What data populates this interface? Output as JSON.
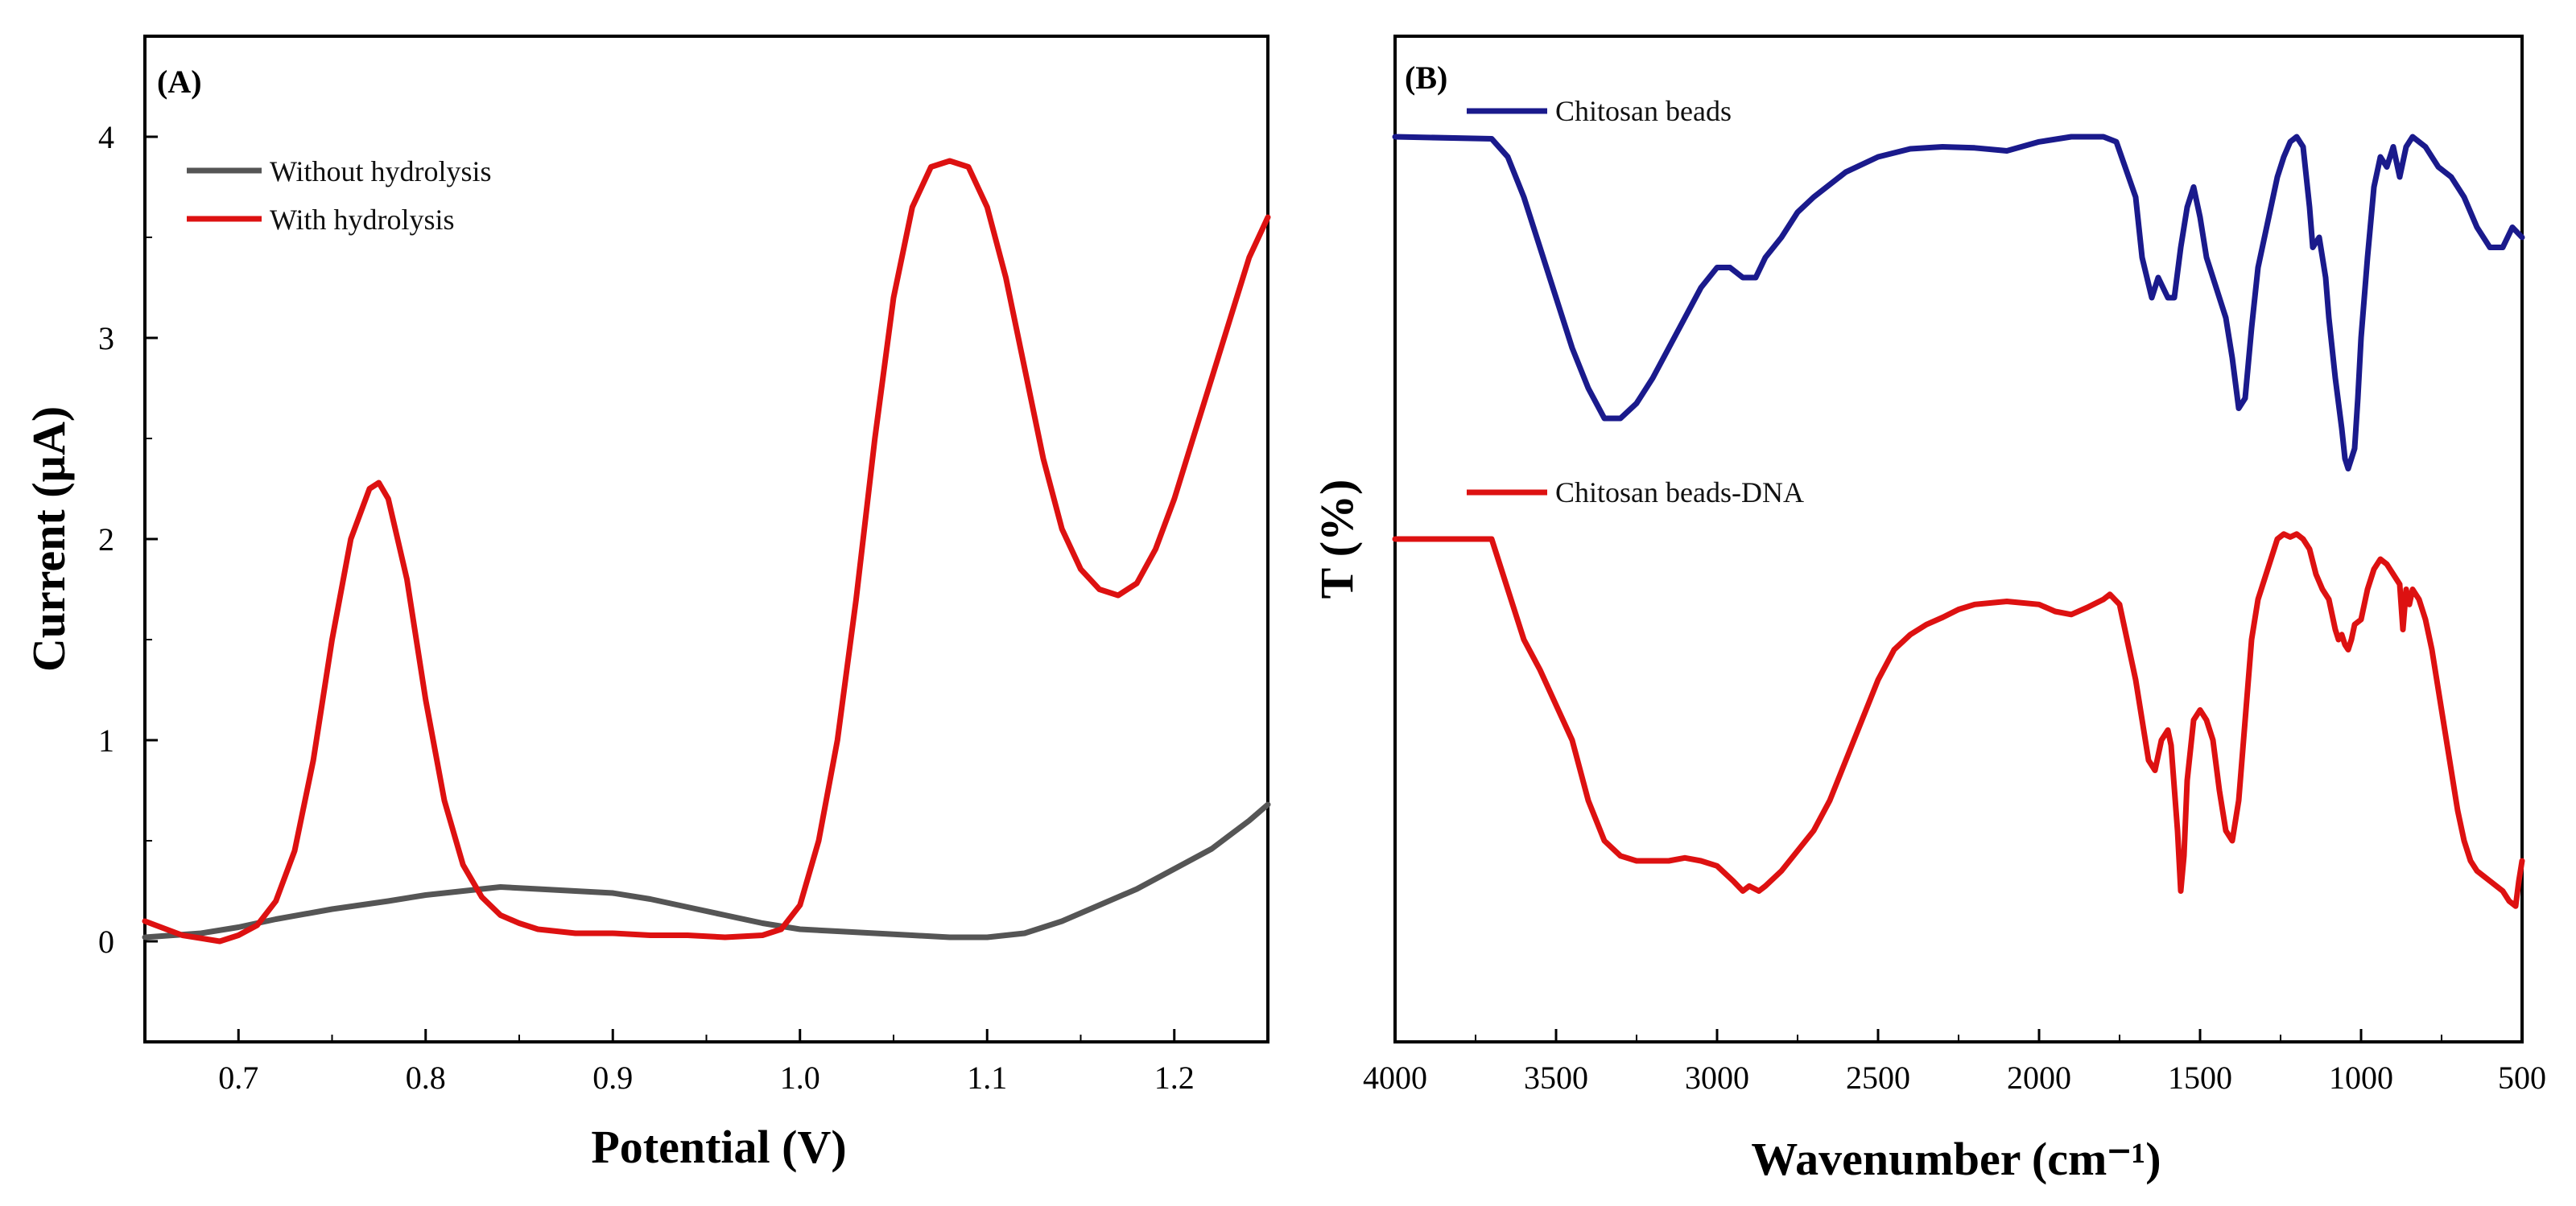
{
  "chart_data": [
    {
      "type": "line",
      "panel_label": "(A)",
      "xlabel": "Potential (V)",
      "ylabel": "Current (µA)",
      "xlim": [
        0.65,
        1.25
      ],
      "ylim": [
        -0.5,
        4.5
      ],
      "xticks": [
        0.7,
        0.8,
        0.9,
        1.0,
        1.1,
        1.2
      ],
      "xtick_labels": [
        "0.7",
        "0.8",
        "0.9",
        "1.0",
        "1.1",
        "1.2"
      ],
      "yticks": [
        0,
        1,
        2,
        3,
        4
      ],
      "ytick_labels": [
        "0",
        "1",
        "2",
        "3",
        "4"
      ],
      "legend_position": "top-left",
      "series": [
        {
          "name": "Without hydrolysis",
          "color": "#555555",
          "x": [
            0.65,
            0.68,
            0.7,
            0.72,
            0.75,
            0.78,
            0.8,
            0.82,
            0.84,
            0.86,
            0.88,
            0.9,
            0.92,
            0.94,
            0.96,
            0.98,
            1.0,
            1.02,
            1.04,
            1.06,
            1.08,
            1.1,
            1.12,
            1.14,
            1.16,
            1.18,
            1.2,
            1.22,
            1.24,
            1.25
          ],
          "y": [
            0.02,
            0.04,
            0.07,
            0.11,
            0.16,
            0.2,
            0.23,
            0.25,
            0.27,
            0.26,
            0.25,
            0.24,
            0.21,
            0.17,
            0.13,
            0.09,
            0.06,
            0.05,
            0.04,
            0.03,
            0.02,
            0.02,
            0.04,
            0.1,
            0.18,
            0.26,
            0.36,
            0.46,
            0.6,
            0.68
          ]
        },
        {
          "name": "With hydrolysis",
          "color": "#dd1111",
          "x": [
            0.65,
            0.67,
            0.69,
            0.7,
            0.71,
            0.72,
            0.73,
            0.74,
            0.75,
            0.76,
            0.77,
            0.775,
            0.78,
            0.79,
            0.8,
            0.81,
            0.82,
            0.83,
            0.84,
            0.85,
            0.86,
            0.88,
            0.9,
            0.92,
            0.94,
            0.96,
            0.98,
            0.99,
            1.0,
            1.01,
            1.02,
            1.03,
            1.04,
            1.05,
            1.06,
            1.07,
            1.08,
            1.09,
            1.1,
            1.11,
            1.12,
            1.13,
            1.14,
            1.15,
            1.16,
            1.17,
            1.18,
            1.19,
            1.2,
            1.21,
            1.22,
            1.23,
            1.24,
            1.25
          ],
          "y": [
            0.1,
            0.03,
            0.0,
            0.03,
            0.08,
            0.2,
            0.45,
            0.9,
            1.5,
            2.0,
            2.25,
            2.28,
            2.2,
            1.8,
            1.2,
            0.7,
            0.38,
            0.22,
            0.13,
            0.09,
            0.06,
            0.04,
            0.04,
            0.03,
            0.03,
            0.02,
            0.03,
            0.06,
            0.18,
            0.5,
            1.0,
            1.7,
            2.5,
            3.2,
            3.65,
            3.85,
            3.88,
            3.85,
            3.65,
            3.3,
            2.85,
            2.4,
            2.05,
            1.85,
            1.75,
            1.72,
            1.78,
            1.95,
            2.2,
            2.5,
            2.8,
            3.1,
            3.4,
            3.6
          ]
        }
      ]
    },
    {
      "type": "line",
      "panel_label": "(B)",
      "xlabel": "Wavenumber (cm⁻¹)",
      "ylabel": "T (%)",
      "xlim": [
        4000,
        500
      ],
      "ylim": [
        0,
        100
      ],
      "xticks": [
        4000,
        3500,
        3000,
        2500,
        2000,
        1500,
        1000,
        500
      ],
      "xtick_labels": [
        "4000",
        "3500",
        "3000",
        "2500",
        "2000",
        "1500",
        "1000",
        "500"
      ],
      "legend_position": "top-left",
      "series": [
        {
          "name": "Chitosan beads",
          "color": "#1a1a8c",
          "x": [
            4000,
            3700,
            3650,
            3600,
            3550,
            3500,
            3450,
            3400,
            3350,
            3300,
            3250,
            3200,
            3150,
            3100,
            3050,
            3000,
            2960,
            2920,
            2880,
            2850,
            2800,
            2750,
            2700,
            2600,
            2500,
            2400,
            2300,
            2200,
            2100,
            2000,
            1900,
            1800,
            1760,
            1700,
            1680,
            1650,
            1630,
            1600,
            1580,
            1560,
            1540,
            1520,
            1500,
            1480,
            1450,
            1420,
            1400,
            1380,
            1360,
            1340,
            1320,
            1300,
            1280,
            1260,
            1240,
            1220,
            1200,
            1180,
            1160,
            1150,
            1130,
            1110,
            1100,
            1080,
            1060,
            1050,
            1040,
            1030,
            1020,
            1010,
            1000,
            980,
            960,
            940,
            920,
            900,
            880,
            860,
            840,
            820,
            800,
            760,
            720,
            680,
            640,
            600,
            560,
            530,
            500
          ],
          "y": [
            90.0,
            89.8,
            88.0,
            84.0,
            79.0,
            74.0,
            69.0,
            65.0,
            62.0,
            62.0,
            63.5,
            66.0,
            69.0,
            72.0,
            75.0,
            77.0,
            77.0,
            76.0,
            76.0,
            78.0,
            80.0,
            82.5,
            84.0,
            86.5,
            88.0,
            88.8,
            89.0,
            88.9,
            88.6,
            89.5,
            90.0,
            90.0,
            89.5,
            84.0,
            78.0,
            74.0,
            76.0,
            74.0,
            74.0,
            79.0,
            83.0,
            85.0,
            82.0,
            78.0,
            75.0,
            72.0,
            68.0,
            63.0,
            64.0,
            71.0,
            77.0,
            80.0,
            83.0,
            86.0,
            88.0,
            89.5,
            90.0,
            89.0,
            83.0,
            79.0,
            80.0,
            76.0,
            72.0,
            66.0,
            61.0,
            58.0,
            57.0,
            58.0,
            59.0,
            64.0,
            70.0,
            78.0,
            85.0,
            88.0,
            87.0,
            89.0,
            86.0,
            89.0,
            90.0,
            89.5,
            89.0,
            87.0,
            86.0,
            84.0,
            81.0,
            79.0,
            79.0,
            81.0,
            80.0
          ]
        },
        {
          "name": "Chitosan beads-DNA",
          "color": "#dd1111",
          "x": [
            4000,
            3700,
            3650,
            3600,
            3550,
            3500,
            3450,
            3400,
            3350,
            3300,
            3250,
            3200,
            3150,
            3100,
            3050,
            3000,
            2950,
            2920,
            2900,
            2870,
            2850,
            2800,
            2750,
            2700,
            2650,
            2600,
            2550,
            2500,
            2450,
            2400,
            2350,
            2300,
            2250,
            2200,
            2100,
            2000,
            1950,
            1900,
            1850,
            1800,
            1780,
            1750,
            1700,
            1680,
            1660,
            1640,
            1620,
            1600,
            1590,
            1570,
            1560,
            1550,
            1540,
            1520,
            1500,
            1480,
            1460,
            1440,
            1420,
            1400,
            1380,
            1360,
            1340,
            1320,
            1300,
            1280,
            1260,
            1240,
            1220,
            1200,
            1180,
            1160,
            1140,
            1120,
            1100,
            1080,
            1070,
            1060,
            1050,
            1040,
            1030,
            1020,
            1000,
            980,
            960,
            940,
            920,
            900,
            880,
            870,
            860,
            850,
            840,
            820,
            800,
            780,
            760,
            740,
            720,
            700,
            680,
            660,
            640,
            620,
            600,
            580,
            560,
            540,
            520,
            510,
            500
          ],
          "y": [
            50.0,
            50.0,
            45.0,
            40.0,
            37.0,
            33.5,
            30.0,
            24.0,
            20.0,
            18.5,
            18.0,
            18.0,
            18.0,
            18.3,
            18.0,
            17.5,
            16.0,
            15.0,
            15.5,
            15.0,
            15.5,
            17.0,
            19.0,
            21.0,
            24.0,
            28.0,
            32.0,
            36.0,
            39.0,
            40.5,
            41.5,
            42.2,
            43.0,
            43.5,
            43.8,
            43.5,
            42.8,
            42.5,
            43.2,
            44.0,
            44.5,
            43.5,
            36.0,
            32.0,
            28.0,
            27.0,
            30.0,
            31.0,
            29.5,
            21.0,
            15.0,
            18.5,
            26.0,
            32.0,
            33.0,
            32.0,
            30.0,
            25.0,
            21.0,
            20.0,
            24.0,
            32.0,
            40.0,
            44.0,
            46.0,
            48.0,
            50.0,
            50.5,
            50.2,
            50.5,
            50.0,
            49.0,
            46.5,
            45.0,
            44.0,
            41.0,
            40.0,
            40.5,
            39.5,
            39.0,
            40.0,
            41.5,
            42.0,
            45.0,
            47.0,
            48.0,
            47.5,
            46.5,
            45.5,
            41.0,
            45.0,
            43.5,
            45.0,
            44.0,
            42.0,
            39.0,
            35.0,
            31.0,
            27.0,
            23.0,
            20.0,
            18.0,
            17.0,
            16.5,
            16.0,
            15.5,
            15.0,
            14.0,
            13.5,
            16.0,
            18.0
          ]
        }
      ]
    }
  ]
}
